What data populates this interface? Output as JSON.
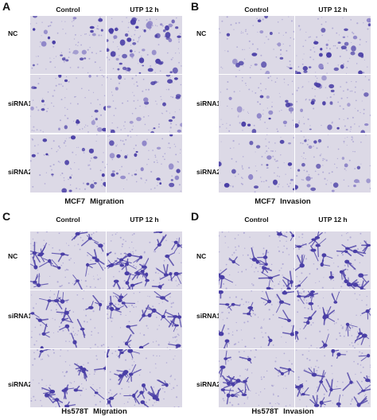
{
  "figure": {
    "panels": [
      {
        "label": "A",
        "columns": [
          "Control",
          "UTP 12 h"
        ],
        "rows": [
          "NC",
          "siRNA1",
          "siRNA2"
        ],
        "cell_line": "MCF7",
        "assay": "Migration",
        "style": "blob"
      },
      {
        "label": "B",
        "columns": [
          "Control",
          "UTP 12 h"
        ],
        "rows": [
          "NC",
          "siRNA1",
          "siRNA2"
        ],
        "cell_line": "MCF7",
        "assay": "Invasion",
        "style": "blob"
      },
      {
        "label": "C",
        "columns": [
          "Control",
          "UTP 12 h"
        ],
        "rows": [
          "NC",
          "siRNA1",
          "siRNA2"
        ],
        "cell_line": "Hs578T",
        "assay": "Migration",
        "style": "spindle"
      },
      {
        "label": "D",
        "columns": [
          "Control",
          "UTP 12 h"
        ],
        "rows": [
          "NC",
          "siRNA1",
          "siRNA2"
        ],
        "cell_line": "Hs578T",
        "assay": "Invasion",
        "style": "spindle"
      }
    ],
    "colors": {
      "background": "#dcd9e6",
      "stain": "#4a3fa6",
      "stain_light": "#8f86c8"
    }
  }
}
